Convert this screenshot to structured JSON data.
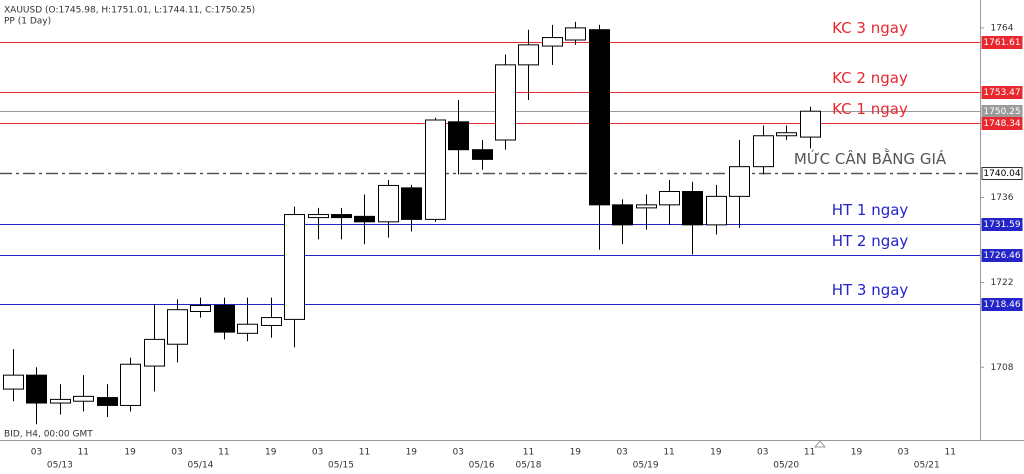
{
  "chart_data": {
    "type": "candlestick",
    "title": "XAUUSD (O:1745.98, H:1751.01, L:1744.11, C:1750.25)",
    "subtitle": "PP (1 Day)",
    "footnote": "BID, H4, 00:00 GMT",
    "categories": [
      null,
      "03",
      null,
      "11",
      null,
      "19",
      null,
      "03",
      null,
      "11",
      null,
      "19",
      null,
      "03",
      null,
      "11",
      null,
      "19",
      null,
      "03",
      null,
      null,
      "11",
      null,
      "19",
      null,
      "03",
      null,
      "11",
      null,
      "19",
      null,
      "03",
      null,
      "11",
      null,
      "19",
      null,
      "03",
      null,
      "11"
    ],
    "date_labels": [
      null,
      null,
      "05/13",
      null,
      null,
      null,
      null,
      null,
      "05/14",
      null,
      null,
      null,
      null,
      null,
      "05/15",
      null,
      null,
      null,
      null,
      null,
      "05/16",
      null,
      "05/18",
      null,
      null,
      null,
      null,
      "05/19",
      null,
      null,
      null,
      null,
      null,
      "05/20",
      null,
      null,
      null,
      null,
      null,
      "05/21",
      null
    ],
    "open": [
      1704.4,
      1706.7,
      1702.1,
      1702.4,
      1703.0,
      1701.7,
      1708.2,
      1711.8,
      1717.2,
      1718.2,
      1713.6,
      1714.9,
      1715.9,
      1732.7,
      1733.2,
      1732.9,
      1732.0,
      1737.6,
      1732.4,
      1748.5,
      1743.9,
      1745.5,
      1757.9,
      1761.0,
      1762.0,
      1763.7,
      1734.8,
      1734.3,
      1734.8,
      1737.0,
      1731.5,
      1736.2,
      1741.1,
      1746.2,
      1745.98,
      null,
      null,
      null,
      null,
      null,
      null
    ],
    "high": [
      1711.0,
      1708.0,
      1705.2,
      1706.7,
      1705.2,
      1709.6,
      1718.4,
      1719.2,
      1719.5,
      1719.5,
      1719.5,
      1719.5,
      1734.5,
      1734.3,
      1734.3,
      1736.5,
      1738.9,
      1738.1,
      1749.2,
      1752.1,
      1745.5,
      1759.6,
      1763.7,
      1764.5,
      1765.0,
      1764.5,
      1735.7,
      1736.5,
      1738.9,
      1738.6,
      1738.1,
      1745.5,
      1747.9,
      1747.9,
      1751.01,
      null,
      null,
      null,
      null,
      null,
      null
    ],
    "low": [
      1702.4,
      1698.6,
      1700.2,
      1700.7,
      1699.8,
      1700.7,
      1704.0,
      1708.8,
      1716.2,
      1712.6,
      1712.3,
      1712.9,
      1711.3,
      1729.1,
      1729.1,
      1728.3,
      1729.4,
      1730.4,
      1732.0,
      1739.8,
      1740.6,
      1743.9,
      1752.1,
      1757.9,
      1761.2,
      1727.4,
      1728.3,
      1730.7,
      1731.5,
      1726.6,
      1729.9,
      1731.0,
      1739.8,
      1745.5,
      1744.11,
      null,
      null,
      null,
      null,
      null,
      null
    ],
    "close": [
      1706.7,
      1702.1,
      1702.7,
      1703.2,
      1701.7,
      1708.5,
      1712.6,
      1717.5,
      1718.2,
      1713.8,
      1715.1,
      1716.2,
      1733.2,
      1733.2,
      1732.7,
      1732.0,
      1738.0,
      1732.4,
      1748.8,
      1743.9,
      1742.3,
      1757.9,
      1761.2,
      1762.4,
      1764.0,
      1734.8,
      1731.5,
      1734.8,
      1737.0,
      1731.5,
      1736.2,
      1741.1,
      1746.2,
      1746.7,
      1750.25,
      null,
      null,
      null,
      null,
      null,
      null
    ],
    "up_color": "#ffffff",
    "down_color": "#000000",
    "ylim": [
      1696,
      1768.6
    ],
    "yticks": [
      1708,
      1722,
      1736,
      1764
    ],
    "levels": [
      {
        "name": "KC 3 ngay",
        "value": 1761.61,
        "color": "#e8282e",
        "dash": false
      },
      {
        "name": "KC 2 ngay",
        "value": 1753.47,
        "color": "#e8282e",
        "dash": false
      },
      {
        "name": null,
        "value": 1750.25,
        "color": "#9a9a9a",
        "dash": false
      },
      {
        "name": "KC 1 ngay",
        "value": 1748.34,
        "color": "#e8282e",
        "dash": false
      },
      {
        "name": "MỨC CÂN BẰNG GIÁ",
        "value": 1740.04,
        "color": "#555555",
        "dash": true
      },
      {
        "name": "HT 1 ngay",
        "value": 1731.59,
        "color": "#2424c8",
        "dash": false
      },
      {
        "name": "HT 2 ngay",
        "value": 1726.46,
        "color": "#2424c8",
        "dash": false
      },
      {
        "name": "HT 3 ngay",
        "value": 1718.46,
        "color": "#2424c8",
        "dash": false
      }
    ]
  }
}
